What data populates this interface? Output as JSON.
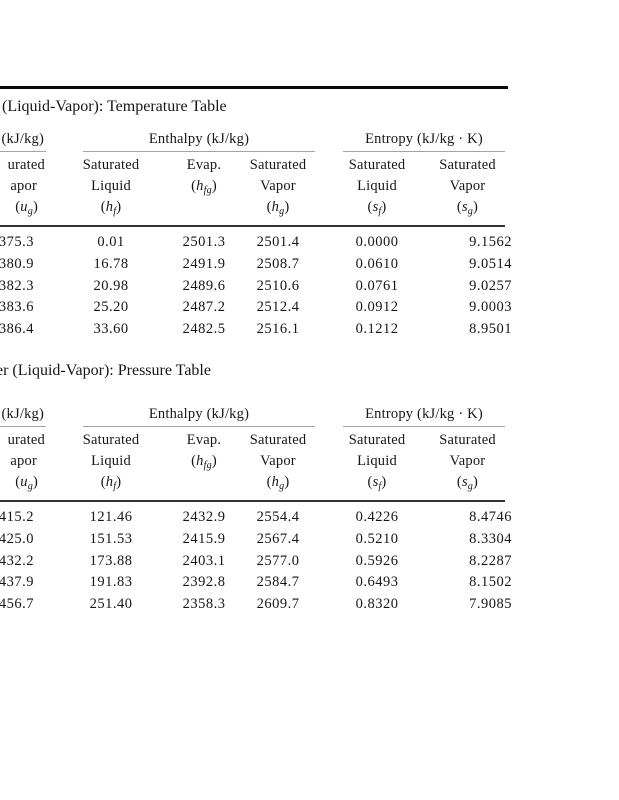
{
  "page": {
    "background": "#ffffff",
    "text_color": "#161616"
  },
  "rules": {
    "top_rule": "#0a0a0a",
    "header_underline": "#a3a3a3",
    "mid_rule": "#333333"
  },
  "tables": [
    {
      "title": "(Liquid-Vapor): Temperature Table",
      "group_internal_energy": "(kJ/kg)",
      "group_enthalpy": "Enthalpy (kJ/kg)",
      "group_entropy": "Entropy (kJ/kg · K)",
      "columns": [
        {
          "lines": [
            "urated",
            "apor"
          ],
          "sym": "(u_g)"
        },
        {
          "lines": [
            "Saturated",
            "Liquid"
          ],
          "sym": "(h_f)"
        },
        {
          "lines": [
            "",
            "Evap."
          ],
          "sym": "(h_fg)"
        },
        {
          "lines": [
            "Saturated",
            "Vapor"
          ],
          "sym": "(h_g)"
        },
        {
          "lines": [
            "Saturated",
            "Liquid"
          ],
          "sym": "(s_f)"
        },
        {
          "lines": [
            "Saturated",
            "Vapor"
          ],
          "sym": "(s_g)"
        }
      ],
      "rows": [
        [
          "375.3",
          "0.01",
          "2501.3",
          "2501.4",
          "0.0000",
          "9.1562"
        ],
        [
          "380.9",
          "16.78",
          "2491.9",
          "2508.7",
          "0.0610",
          "9.0514"
        ],
        [
          "382.3",
          "20.98",
          "2489.6",
          "2510.6",
          "0.0761",
          "9.0257"
        ],
        [
          "383.6",
          "25.20",
          "2487.2",
          "2512.4",
          "0.0912",
          "9.0003"
        ],
        [
          "386.4",
          "33.60",
          "2482.5",
          "2516.1",
          "0.1212",
          "8.9501"
        ]
      ]
    },
    {
      "title": "er (Liquid-Vapor): Pressure Table",
      "group_internal_energy": "(kJ/kg)",
      "group_enthalpy": "Enthalpy (kJ/kg)",
      "group_entropy": "Entropy (kJ/kg · K)",
      "columns": [
        {
          "lines": [
            "urated",
            "apor"
          ],
          "sym": "(u_g)"
        },
        {
          "lines": [
            "Saturated",
            "Liquid"
          ],
          "sym": "(h_f)"
        },
        {
          "lines": [
            "",
            "Evap."
          ],
          "sym": "(h_fg)"
        },
        {
          "lines": [
            "Saturated",
            "Vapor"
          ],
          "sym": "(h_g)"
        },
        {
          "lines": [
            "Saturated",
            "Liquid"
          ],
          "sym": "(s_f)"
        },
        {
          "lines": [
            "Saturated",
            "Vapor"
          ],
          "sym": "(s_g)"
        }
      ],
      "rows": [
        [
          "415.2",
          "121.46",
          "2432.9",
          "2554.4",
          "0.4226",
          "8.4746"
        ],
        [
          "425.0",
          "151.53",
          "2415.9",
          "2567.4",
          "0.5210",
          "8.3304"
        ],
        [
          "432.2",
          "173.88",
          "2403.1",
          "2577.0",
          "0.5926",
          "8.2287"
        ],
        [
          "437.9",
          "191.83",
          "2392.8",
          "2584.7",
          "0.6493",
          "8.1502"
        ],
        [
          "456.7",
          "251.40",
          "2358.3",
          "2609.7",
          "0.8320",
          "7.9085"
        ]
      ]
    }
  ]
}
